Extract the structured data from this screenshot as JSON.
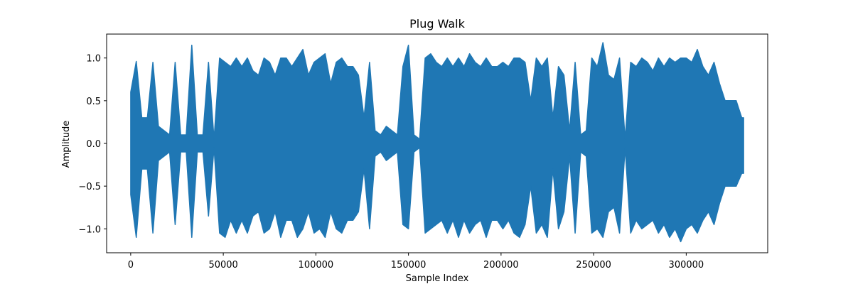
{
  "chart_data": {
    "type": "line",
    "title": "Plug Walk",
    "xlabel": "Sample Index",
    "ylabel": "Amplitude",
    "xlim": [
      -13000,
      344000
    ],
    "ylim": [
      -1.28,
      1.28
    ],
    "xticks": [
      0,
      50000,
      100000,
      150000,
      200000,
      250000,
      300000
    ],
    "xtick_labels": [
      "0",
      "50000",
      "100000",
      "150000",
      "200000",
      "250000",
      "300000"
    ],
    "yticks": [
      -1.0,
      -0.5,
      0.0,
      0.5,
      1.0
    ],
    "ytick_labels": [
      "−1.0",
      "−0.5",
      "0.0",
      "0.5",
      "1.0"
    ],
    "grid": false,
    "colors": {
      "series": "#1f77b4"
    },
    "series": [
      {
        "x": [
          0,
          3000,
          6000,
          9000,
          12000,
          15000,
          18000,
          21000,
          24000,
          27000,
          30000,
          33000,
          36000,
          39000,
          42000,
          45000,
          48000,
          51000,
          54000,
          57000,
          60000,
          63000,
          66000,
          69000,
          72000,
          75000,
          78000,
          81000,
          84000,
          87000,
          90000,
          93000,
          96000,
          99000,
          102000,
          105000,
          108000,
          111000,
          114000,
          117000,
          120000,
          123000,
          126000,
          129000,
          132000,
          135000,
          138000,
          141000,
          144000,
          147000,
          150000,
          153000,
          156000,
          159000,
          162000,
          165000,
          168000,
          171000,
          174000,
          177000,
          180000,
          183000,
          186000,
          189000,
          192000,
          195000,
          198000,
          201000,
          204000,
          207000,
          210000,
          213000,
          216000,
          219000,
          222000,
          225000,
          228000,
          231000,
          234000,
          237000,
          240000,
          243000,
          246000,
          249000,
          252000,
          255000,
          258000,
          261000,
          264000,
          267000,
          270000,
          273000,
          276000,
          279000,
          282000,
          285000,
          288000,
          291000,
          294000,
          297000,
          300000,
          303000,
          306000,
          309000,
          312000,
          315000,
          318000,
          321000,
          324000,
          327000,
          330000,
          331000
        ],
        "y_max": [
          0.6,
          0.96,
          0.3,
          0.3,
          0.95,
          0.2,
          0.15,
          0.1,
          0.95,
          0.1,
          0.1,
          1.15,
          0.1,
          0.1,
          0.95,
          0.05,
          1.0,
          0.95,
          0.9,
          1.0,
          0.9,
          1.0,
          0.85,
          0.8,
          1.0,
          0.95,
          0.8,
          1.0,
          1.0,
          0.9,
          1.0,
          1.1,
          0.8,
          0.95,
          1.0,
          1.05,
          0.7,
          0.95,
          1.0,
          0.9,
          0.9,
          0.8,
          0.3,
          0.95,
          0.15,
          0.1,
          0.2,
          0.15,
          0.1,
          0.9,
          1.15,
          0.1,
          0.05,
          1.0,
          1.05,
          0.95,
          0.9,
          1.0,
          0.9,
          1.0,
          0.9,
          1.05,
          0.95,
          0.9,
          1.0,
          0.9,
          0.9,
          0.95,
          0.9,
          1.0,
          1.0,
          0.95,
          0.5,
          1.0,
          0.9,
          1.0,
          0.3,
          0.9,
          0.8,
          0.15,
          0.95,
          0.1,
          0.15,
          1.0,
          0.9,
          1.18,
          0.8,
          0.75,
          1.0,
          0.05,
          0.95,
          0.9,
          1.0,
          0.95,
          0.85,
          1.0,
          0.9,
          1.0,
          0.95,
          1.0,
          1.0,
          0.95,
          1.1,
          0.9,
          0.8,
          0.95,
          0.7,
          0.5,
          0.5,
          0.5,
          0.3,
          0.3
        ],
        "y_min": [
          -0.6,
          -1.1,
          -0.3,
          -0.3,
          -1.05,
          -0.2,
          -0.15,
          -0.1,
          -0.95,
          -0.1,
          -0.1,
          -1.1,
          -0.1,
          -0.1,
          -0.85,
          -0.05,
          -1.05,
          -1.1,
          -0.9,
          -1.05,
          -0.9,
          -1.05,
          -0.85,
          -0.8,
          -1.05,
          -1.0,
          -0.8,
          -1.1,
          -0.9,
          -0.9,
          -1.1,
          -1.0,
          -0.8,
          -1.05,
          -1.0,
          -1.1,
          -0.8,
          -1.0,
          -1.05,
          -0.9,
          -0.9,
          -0.8,
          -0.3,
          -1.0,
          -0.15,
          -0.1,
          -0.2,
          -0.15,
          -0.1,
          -0.95,
          -1.0,
          -0.1,
          -0.05,
          -1.05,
          -1.0,
          -0.95,
          -0.9,
          -1.05,
          -0.9,
          -1.1,
          -0.9,
          -1.05,
          -0.95,
          -0.9,
          -1.1,
          -0.9,
          -0.9,
          -1.0,
          -0.9,
          -1.05,
          -1.1,
          -0.95,
          -0.5,
          -1.05,
          -0.95,
          -1.1,
          -0.3,
          -1.0,
          -0.8,
          -0.15,
          -1.05,
          -0.1,
          -0.15,
          -1.05,
          -1.0,
          -1.1,
          -0.8,
          -0.75,
          -1.05,
          -0.05,
          -1.05,
          -0.9,
          -1.0,
          -0.95,
          -0.9,
          -1.05,
          -0.95,
          -1.1,
          -1.0,
          -1.15,
          -1.0,
          -0.95,
          -1.05,
          -0.9,
          -0.8,
          -0.95,
          -0.7,
          -0.5,
          -0.5,
          -0.5,
          -0.35,
          -0.35
        ]
      }
    ]
  }
}
